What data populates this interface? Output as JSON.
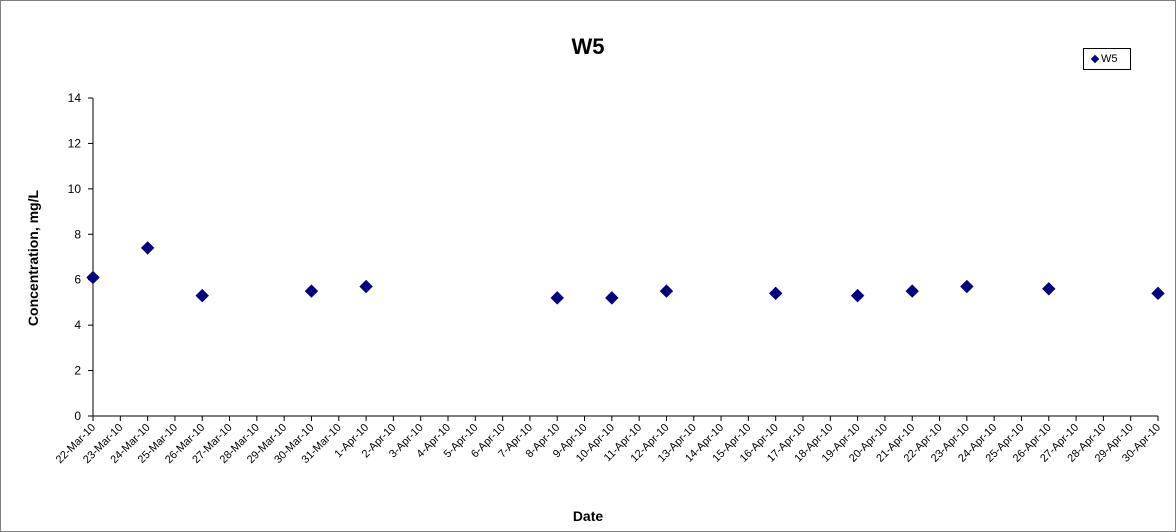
{
  "chart_data": {
    "type": "scatter",
    "title": "W5",
    "xlabel": "Date",
    "ylabel": "Concentration, mg/L",
    "ylim": [
      0,
      14
    ],
    "yticks": [
      0,
      2,
      4,
      6,
      8,
      10,
      12,
      14
    ],
    "xticks": [
      "22-Mar-10",
      "23-Mar-10",
      "24-Mar-10",
      "25-Mar-10",
      "26-Mar-10",
      "27-Mar-10",
      "28-Mar-10",
      "29-Mar-10",
      "30-Mar-10",
      "31-Mar-10",
      "1-Apr-10",
      "2-Apr-10",
      "3-Apr-10",
      "4-Apr-10",
      "5-Apr-10",
      "6-Apr-10",
      "7-Apr-10",
      "8-Apr-10",
      "9-Apr-10",
      "10-Apr-10",
      "11-Apr-10",
      "12-Apr-10",
      "13-Apr-10",
      "14-Apr-10",
      "15-Apr-10",
      "16-Apr-10",
      "17-Apr-10",
      "18-Apr-10",
      "19-Apr-10",
      "20-Apr-10",
      "21-Apr-10",
      "22-Apr-10",
      "23-Apr-10",
      "24-Apr-10",
      "25-Apr-10",
      "26-Apr-10",
      "27-Apr-10",
      "28-Apr-10",
      "29-Apr-10",
      "30-Apr-10"
    ],
    "legend_position": "top-right",
    "grid": false,
    "series": [
      {
        "name": "W5",
        "color": "#000080",
        "marker": "diamond",
        "points": [
          {
            "x": "22-Mar-10",
            "y": 6.1
          },
          {
            "x": "24-Mar-10",
            "y": 7.4
          },
          {
            "x": "26-Mar-10",
            "y": 5.3
          },
          {
            "x": "30-Mar-10",
            "y": 5.5
          },
          {
            "x": "1-Apr-10",
            "y": 5.7
          },
          {
            "x": "8-Apr-10",
            "y": 5.2
          },
          {
            "x": "10-Apr-10",
            "y": 5.2
          },
          {
            "x": "12-Apr-10",
            "y": 5.5
          },
          {
            "x": "16-Apr-10",
            "y": 5.4
          },
          {
            "x": "19-Apr-10",
            "y": 5.3
          },
          {
            "x": "21-Apr-10",
            "y": 5.5
          },
          {
            "x": "23-Apr-10",
            "y": 5.7
          },
          {
            "x": "26-Apr-10",
            "y": 5.6
          },
          {
            "x": "30-Apr-10",
            "y": 5.4
          }
        ]
      }
    ]
  }
}
